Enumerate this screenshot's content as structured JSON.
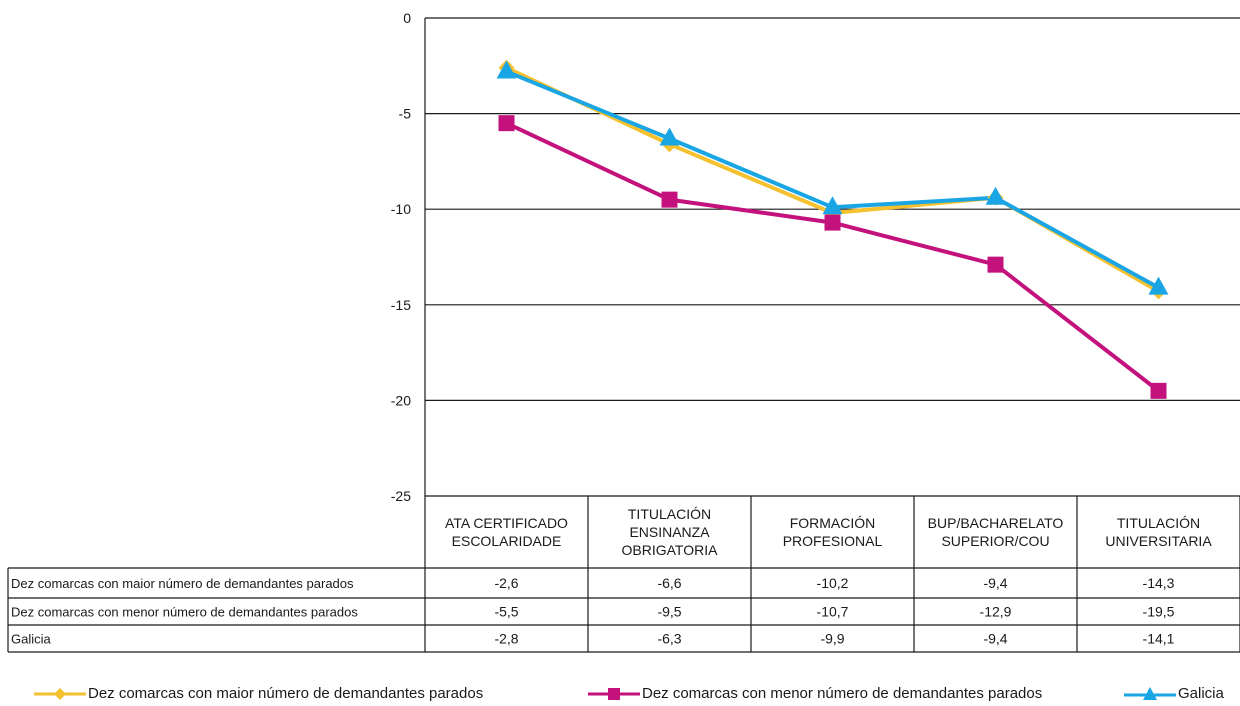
{
  "chart_data": {
    "type": "line",
    "categories": [
      [
        "ATA CERTIFICADO",
        "ESCOLARIDADE"
      ],
      [
        "TITULACIÓN",
        "ENSINANZA",
        "OBRIGATORIA"
      ],
      [
        "FORMACIÓN",
        "PROFESIONAL"
      ],
      [
        "BUP/BACHARELATO",
        "SUPERIOR/COU"
      ],
      [
        "TITULACIÓN",
        "UNIVERSITARIA"
      ]
    ],
    "ylim": [
      -25,
      0
    ],
    "yticks": [
      "0",
      "-5",
      "-10",
      "-15",
      "-20",
      "-25"
    ],
    "ytick_values": [
      0,
      -5,
      -10,
      -15,
      -20,
      -25
    ],
    "grid": true,
    "legend_position": "bottom",
    "series": [
      {
        "name": "Dez comarcas con maior número de demandantes parados",
        "values": [
          -2.6,
          -6.6,
          -10.2,
          -9.4,
          -14.3
        ],
        "labels": [
          "-2,6",
          "-6,6",
          "-10,2",
          "-9,4",
          "-14,3"
        ],
        "color": "#f5c12e",
        "marker": "diamond"
      },
      {
        "name": "Dez comarcas con menor número de demandantes parados",
        "values": [
          -5.5,
          -9.5,
          -10.7,
          -12.9,
          -19.5
        ],
        "labels": [
          "-5,5",
          "-9,5",
          "-10,7",
          "-12,9",
          "-19,5"
        ],
        "color": "#c4127c",
        "marker": "square"
      },
      {
        "name": "Galicia",
        "values": [
          -2.8,
          -6.3,
          -9.9,
          -9.4,
          -14.1
        ],
        "labels": [
          "-2,8",
          "-6,3",
          "-9,9",
          "-9,4",
          "-14,1"
        ],
        "color": "#1aa6e4",
        "marker": "triangle"
      }
    ]
  }
}
